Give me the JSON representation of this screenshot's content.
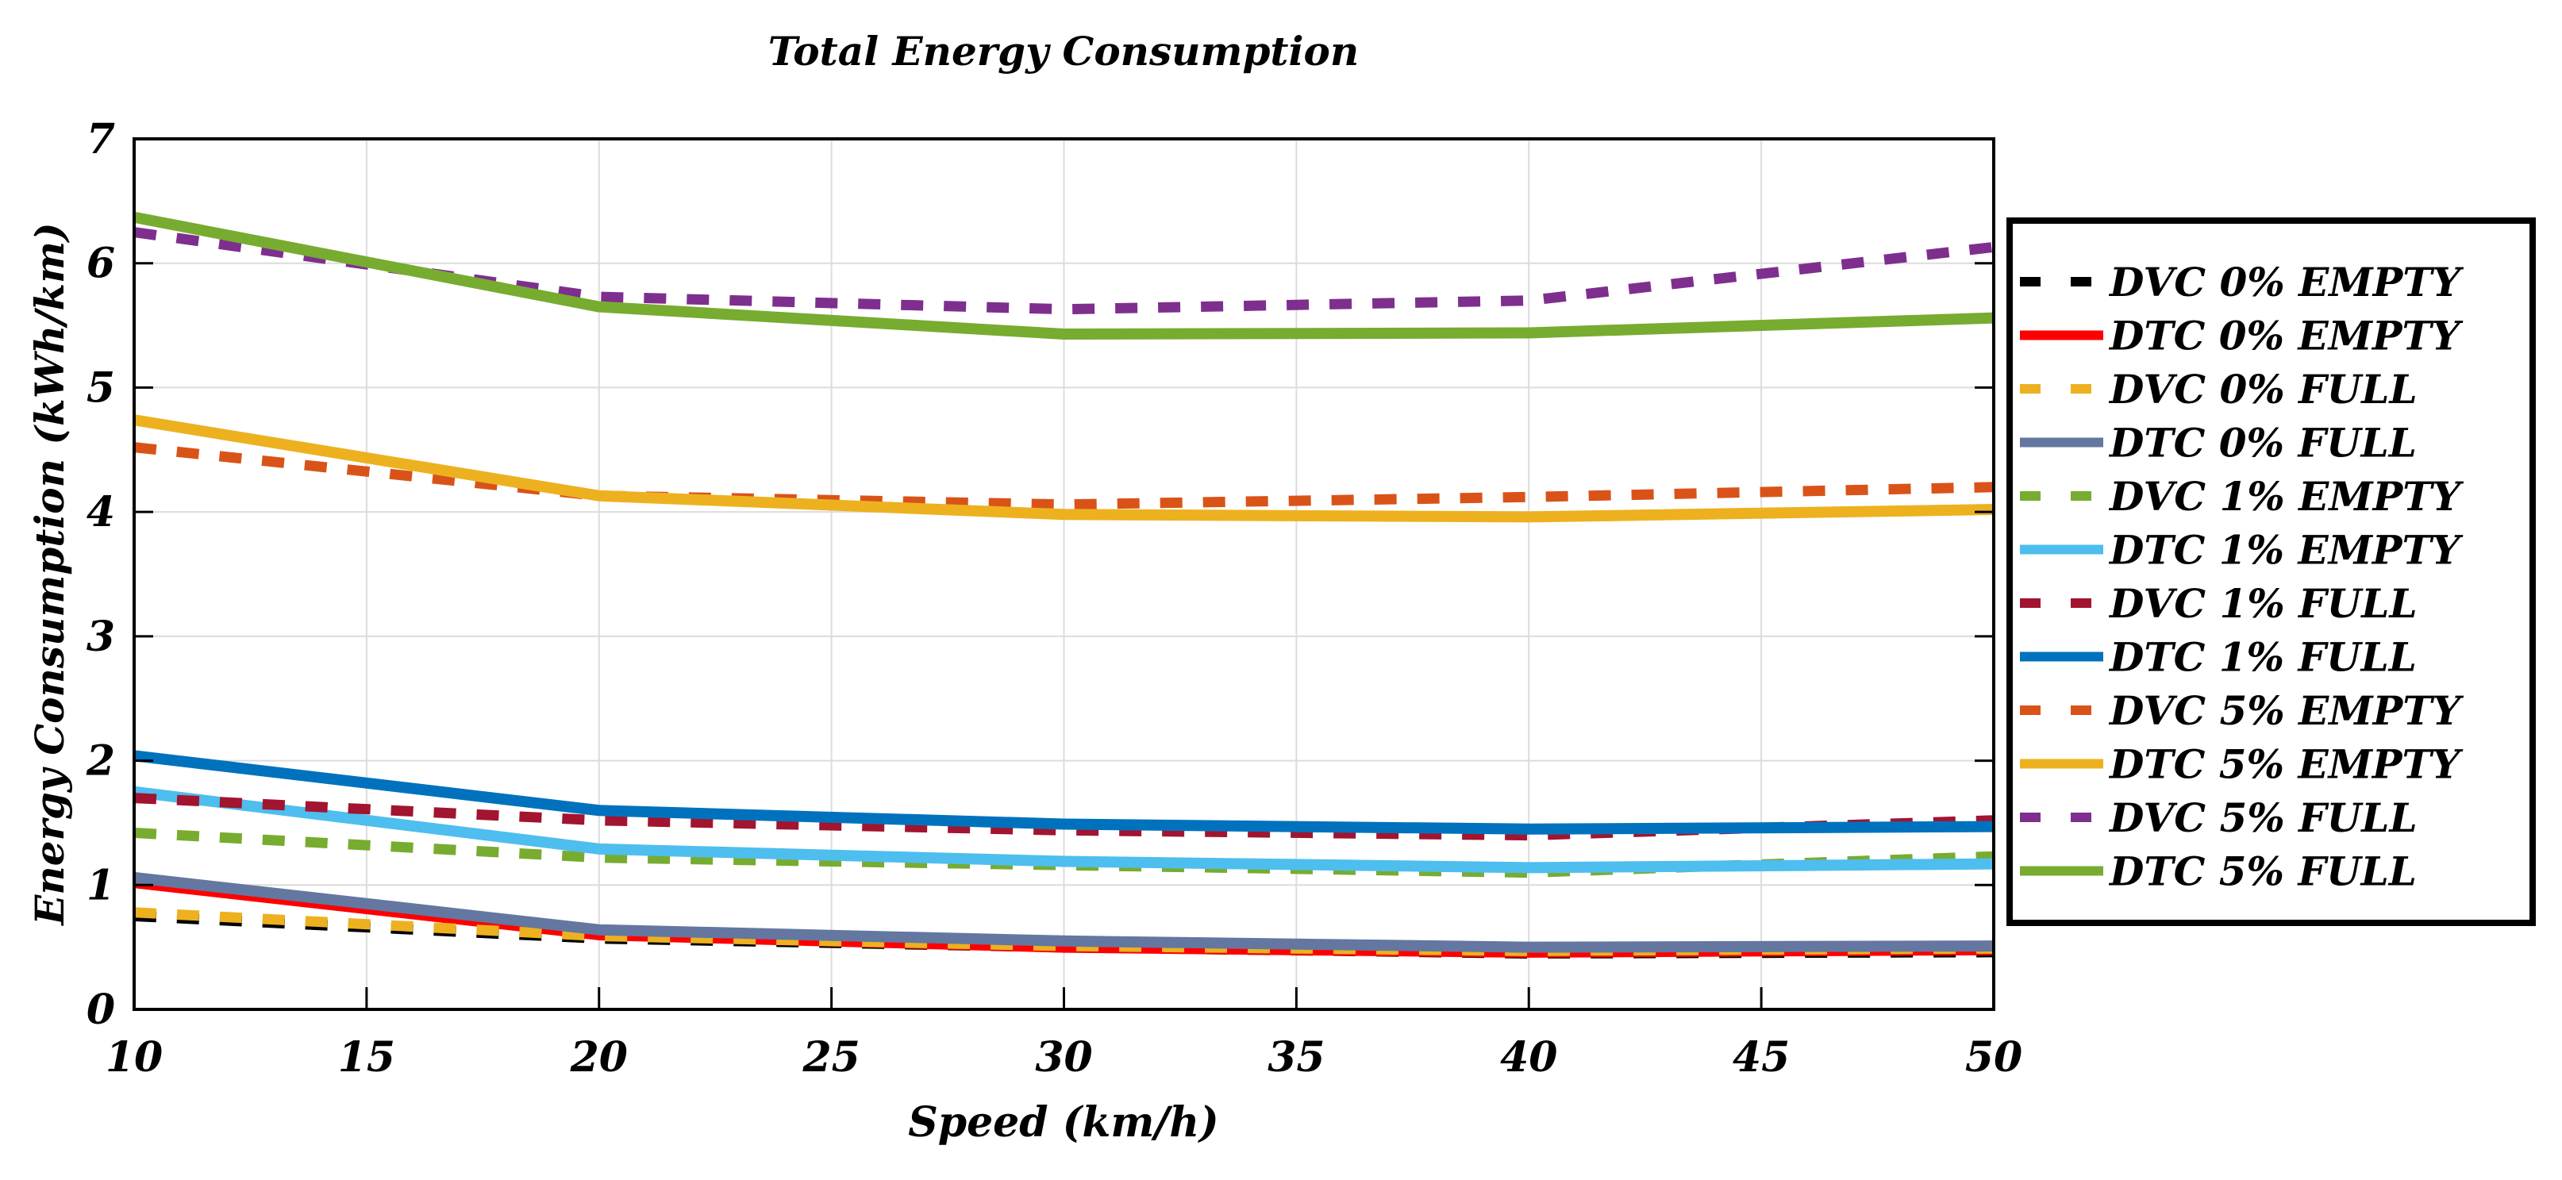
{
  "chart_data": {
    "type": "line",
    "title": "Total Energy Consumption",
    "xlabel": "Speed (km/h)",
    "ylabel": "Energy Consumption (kWh/km)",
    "xlim": [
      10,
      50
    ],
    "ylim": [
      0,
      7
    ],
    "xticks": [
      10,
      15,
      20,
      25,
      30,
      35,
      40,
      45,
      50
    ],
    "yticks": [
      0,
      1,
      2,
      3,
      4,
      5,
      6,
      7
    ],
    "grid": true,
    "legend_position": "outside-right",
    "x": [
      10,
      20,
      30,
      40,
      50
    ],
    "series": [
      {
        "name": "DVC 0% EMPTY",
        "color": "#000000",
        "dashed": true,
        "values": [
          0.75,
          0.57,
          0.5,
          0.45,
          0.46
        ]
      },
      {
        "name": "DTC 0% EMPTY",
        "color": "#ff0000",
        "dashed": false,
        "values": [
          1.02,
          0.6,
          0.5,
          0.46,
          0.48
        ]
      },
      {
        "name": "DVC 0% FULL",
        "color": "#edb120",
        "dashed": true,
        "values": [
          0.78,
          0.59,
          0.51,
          0.47,
          0.49
        ]
      },
      {
        "name": "DTC 0% FULL",
        "color": "#6477a0",
        "dashed": false,
        "values": [
          1.06,
          0.64,
          0.55,
          0.5,
          0.51
        ]
      },
      {
        "name": "DVC 1% EMPTY",
        "color": "#77ac30",
        "dashed": true,
        "values": [
          1.42,
          1.22,
          1.16,
          1.1,
          1.23
        ]
      },
      {
        "name": "DTC 1% EMPTY",
        "color": "#4dbeee",
        "dashed": false,
        "values": [
          1.75,
          1.29,
          1.19,
          1.14,
          1.17
        ]
      },
      {
        "name": "DVC 1% FULL",
        "color": "#a2142f",
        "dashed": true,
        "values": [
          1.7,
          1.52,
          1.44,
          1.4,
          1.52
        ]
      },
      {
        "name": "DTC 1% FULL",
        "color": "#0072bd",
        "dashed": false,
        "values": [
          2.04,
          1.6,
          1.49,
          1.45,
          1.47
        ]
      },
      {
        "name": "DVC 5% EMPTY",
        "color": "#d95319",
        "dashed": true,
        "values": [
          4.52,
          4.13,
          4.06,
          4.12,
          4.2
        ]
      },
      {
        "name": "DTC 5% EMPTY",
        "color": "#edb120",
        "dashed": false,
        "values": [
          4.74,
          4.13,
          3.98,
          3.96,
          4.02
        ]
      },
      {
        "name": "DVC 5% FULL",
        "color": "#7e2f8e",
        "dashed": true,
        "values": [
          6.25,
          5.73,
          5.63,
          5.7,
          6.13
        ]
      },
      {
        "name": "DTC 5% FULL",
        "color": "#77ac30",
        "dashed": false,
        "values": [
          6.37,
          5.65,
          5.43,
          5.44,
          5.56
        ]
      }
    ]
  }
}
